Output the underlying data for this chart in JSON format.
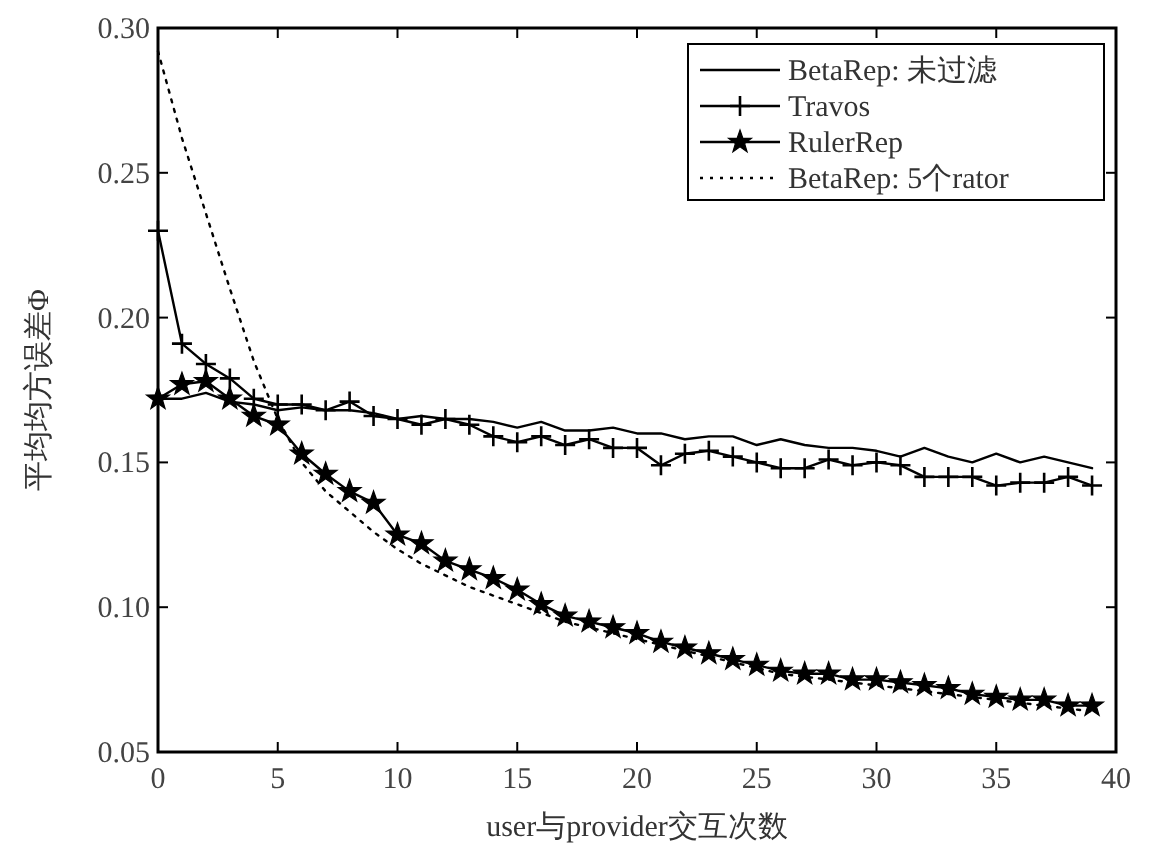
{
  "chart_data": {
    "type": "line",
    "xlabel": "user与provider交互次数",
    "ylabel": "平均均方误差Φ",
    "x": [
      0,
      1,
      2,
      3,
      4,
      5,
      6,
      7,
      8,
      9,
      10,
      11,
      12,
      13,
      14,
      15,
      16,
      17,
      18,
      19,
      20,
      21,
      22,
      23,
      24,
      25,
      26,
      27,
      28,
      29,
      30,
      31,
      32,
      33,
      34,
      35,
      36,
      37,
      38,
      39
    ],
    "xlim": [
      0,
      40
    ],
    "xticks": [
      0,
      5,
      10,
      15,
      20,
      25,
      30,
      35,
      40
    ],
    "ylim": [
      0.05,
      0.3
    ],
    "yticks": [
      {
        "value": 0.05,
        "label": "0.05"
      },
      {
        "value": 0.1,
        "label": "0.10"
      },
      {
        "value": 0.15,
        "label": "0.15"
      },
      {
        "value": 0.2,
        "label": "0.20"
      },
      {
        "value": 0.25,
        "label": "0.25"
      },
      {
        "value": 0.3,
        "label": "0.30"
      }
    ],
    "grid": false,
    "legend": "top right",
    "series": [
      {
        "name": "BetaRep: 未过滤",
        "color": "#000000",
        "marker": "none",
        "line_style": "solid",
        "values": [
          0.172,
          0.172,
          0.174,
          0.171,
          0.17,
          0.168,
          0.169,
          0.168,
          0.168,
          0.167,
          0.165,
          0.166,
          0.165,
          0.165,
          0.164,
          0.162,
          0.164,
          0.161,
          0.161,
          0.162,
          0.16,
          0.16,
          0.158,
          0.159,
          0.159,
          0.156,
          0.158,
          0.156,
          0.155,
          0.155,
          0.154,
          0.152,
          0.155,
          0.152,
          0.15,
          0.153,
          0.15,
          0.152,
          0.15,
          0.148
        ]
      },
      {
        "name": "Travos",
        "color": "#000000",
        "marker": "cross",
        "line_style": "solid",
        "values": [
          0.23,
          0.191,
          0.184,
          0.179,
          0.172,
          0.17,
          0.17,
          0.168,
          0.171,
          0.166,
          0.165,
          0.163,
          0.165,
          0.163,
          0.159,
          0.157,
          0.159,
          0.156,
          0.158,
          0.155,
          0.155,
          0.149,
          0.153,
          0.154,
          0.152,
          0.15,
          0.148,
          0.148,
          0.151,
          0.149,
          0.15,
          0.149,
          0.145,
          0.145,
          0.145,
          0.142,
          0.143,
          0.143,
          0.145,
          0.142
        ]
      },
      {
        "name": "RulerRep",
        "color": "#000000",
        "marker": "star",
        "line_style": "solid",
        "values": [
          0.172,
          0.177,
          0.178,
          0.172,
          0.166,
          0.163,
          0.153,
          0.146,
          0.14,
          0.136,
          0.125,
          0.122,
          0.116,
          0.113,
          0.11,
          0.106,
          0.101,
          0.097,
          0.095,
          0.093,
          0.091,
          0.088,
          0.086,
          0.084,
          0.082,
          0.08,
          0.078,
          0.077,
          0.077,
          0.075,
          0.075,
          0.074,
          0.073,
          0.072,
          0.07,
          0.069,
          0.068,
          0.068,
          0.066,
          0.066
        ]
      },
      {
        "name": "BetaRep: 5个rator",
        "color": "#000000",
        "marker": "none",
        "line_style": "dotted",
        "values": [
          0.292,
          0.262,
          0.236,
          0.21,
          0.185,
          0.165,
          0.15,
          0.14,
          0.133,
          0.126,
          0.12,
          0.115,
          0.111,
          0.107,
          0.104,
          0.101,
          0.098,
          0.095,
          0.093,
          0.091,
          0.089,
          0.087,
          0.085,
          0.083,
          0.081,
          0.079,
          0.077,
          0.076,
          0.075,
          0.074,
          0.073,
          0.072,
          0.071,
          0.07,
          0.069,
          0.068,
          0.067,
          0.066,
          0.065,
          0.064
        ]
      }
    ]
  }
}
